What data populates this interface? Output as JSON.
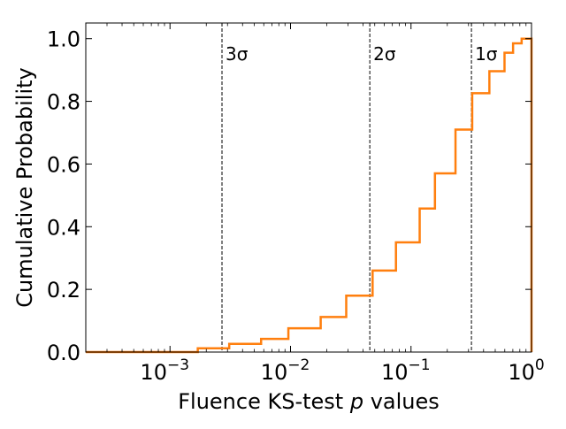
{
  "chart_data": {
    "type": "line",
    "style": "step",
    "xscale": "log",
    "xlabel": "Fluence KS-test p values",
    "ylabel": "Cumulative Probability",
    "xlim": [
      0.0002,
      1.0
    ],
    "ylim": [
      0.0,
      1.05
    ],
    "x_ticks": [
      {
        "value": 0.001,
        "base": "10",
        "exp": "−3"
      },
      {
        "value": 0.01,
        "base": "10",
        "exp": "−2"
      },
      {
        "value": 0.1,
        "base": "10",
        "exp": "−1"
      },
      {
        "value": 1.0,
        "base": "10",
        "exp": "0"
      }
    ],
    "y_ticks": [
      0.0,
      0.2,
      0.4,
      0.6,
      0.8,
      1.0
    ],
    "y_tick_labels": [
      "0.0",
      "0.2",
      "0.4",
      "0.6",
      "0.8",
      "1.0"
    ],
    "grid": false,
    "legend": "none",
    "series": [
      {
        "color": "#ff7f0e",
        "x": [
          0.0002,
          0.0017,
          0.0031,
          0.0057,
          0.0096,
          0.0178,
          0.029,
          0.048,
          0.075,
          0.118,
          0.158,
          0.234,
          0.322,
          0.447,
          0.597,
          0.703,
          0.828,
          0.905,
          1.0
        ],
        "y": [
          0.0,
          0.012,
          0.026,
          0.042,
          0.076,
          0.112,
          0.18,
          0.26,
          0.35,
          0.458,
          0.57,
          0.71,
          0.826,
          0.896,
          0.955,
          0.985,
          1.0,
          1.0,
          0.0
        ]
      }
    ],
    "vlines": [
      {
        "x": 0.0027,
        "label": "3σ",
        "color": "#000000",
        "style": "dashed"
      },
      {
        "x": 0.0455,
        "label": "2σ",
        "color": "#000000",
        "style": "dashed"
      },
      {
        "x": 0.3173,
        "label": "1σ",
        "color": "#000000",
        "style": "dashed"
      }
    ]
  }
}
